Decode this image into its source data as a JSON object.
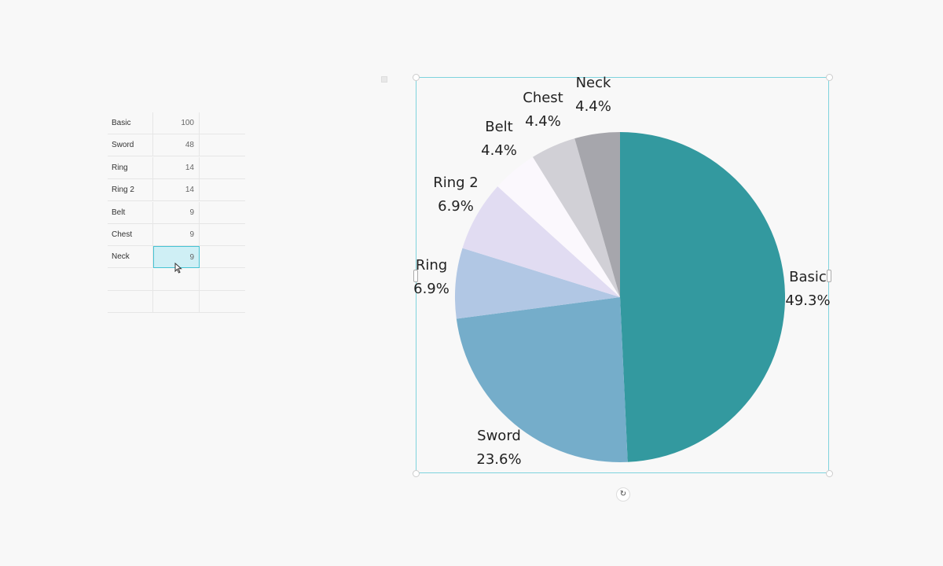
{
  "sheet": {
    "rows": [
      {
        "label": "Basic",
        "value": "100"
      },
      {
        "label": "Sword",
        "value": "48"
      },
      {
        "label": "Ring",
        "value": "14"
      },
      {
        "label": "Ring 2",
        "value": "14"
      },
      {
        "label": "Belt",
        "value": "9"
      },
      {
        "label": "Chest",
        "value": "9"
      },
      {
        "label": "Neck",
        "value": "9"
      },
      {
        "label": "",
        "value": ""
      },
      {
        "label": "",
        "value": ""
      }
    ]
  },
  "chart_data": {
    "type": "pie",
    "categories": [
      "Basic",
      "Sword",
      "Ring",
      "Ring 2",
      "Belt",
      "Chest",
      "Neck"
    ],
    "values": [
      100,
      48,
      14,
      14,
      9,
      9,
      9
    ],
    "percent_labels": [
      "49.3%",
      "23.6%",
      "6.9%",
      "6.9%",
      "4.4%",
      "4.4%",
      "4.4%"
    ],
    "colors": [
      "#33999f",
      "#75adca",
      "#b1c7e4",
      "#e1dcf2",
      "#fbf8fd",
      "#d1d0d6",
      "#a6a6ac"
    ],
    "start": "top",
    "direction": "clockwise"
  }
}
